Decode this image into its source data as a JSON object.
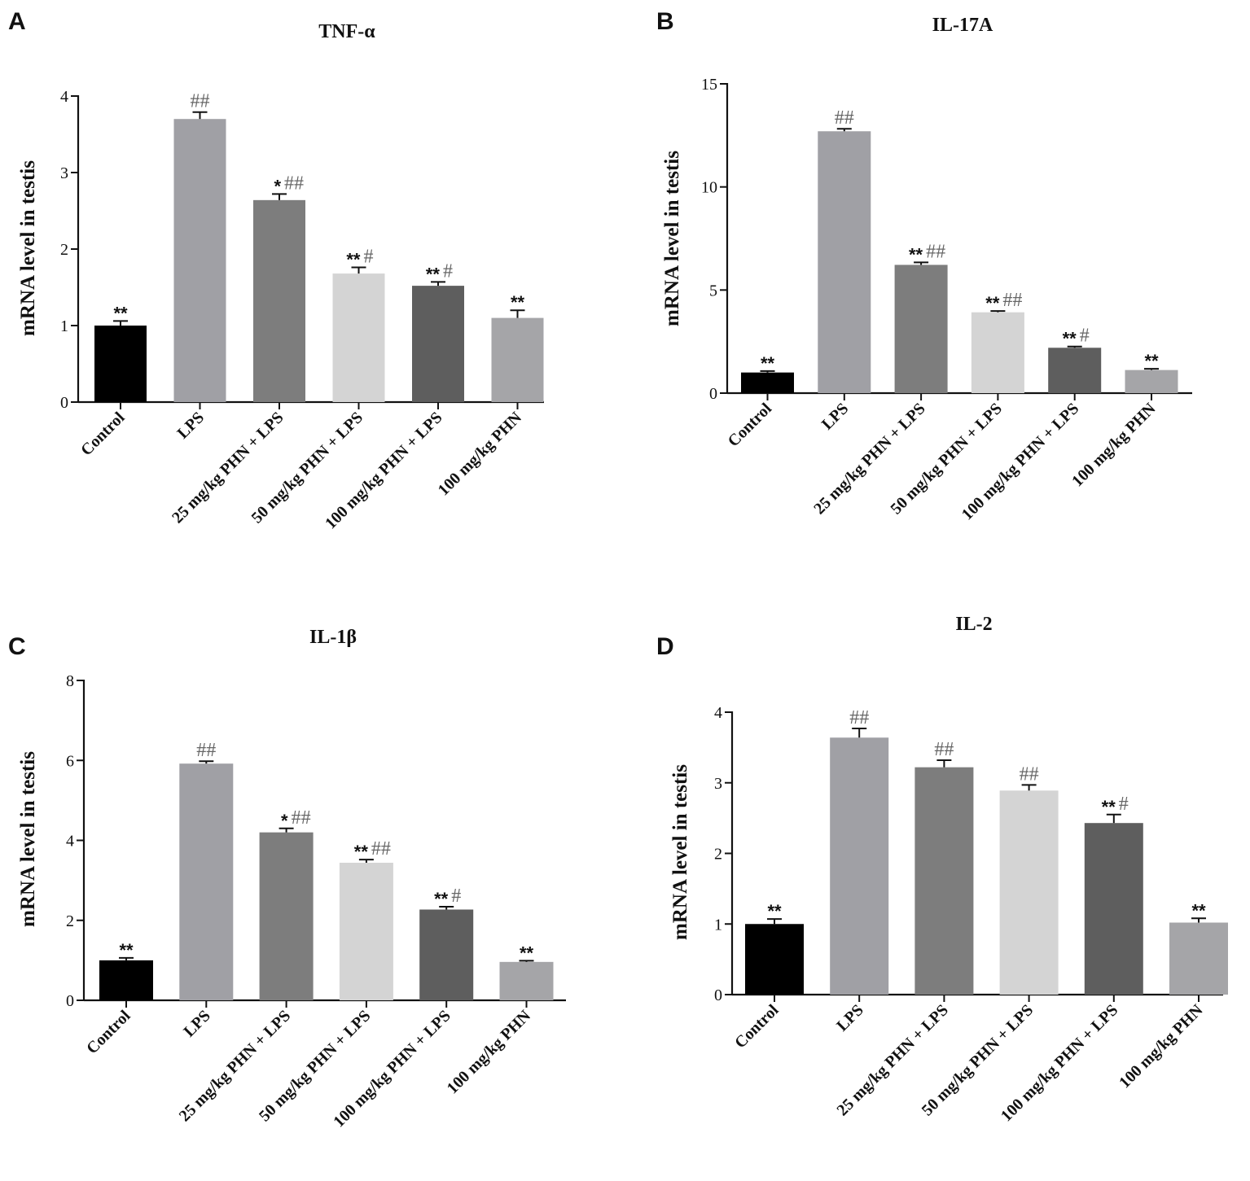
{
  "figure_colors": {
    "bars": [
      "#000000",
      "#a0a0a5",
      "#7d7d7d",
      "#d4d4d4",
      "#5e5e5e",
      "#a5a5a8"
    ],
    "hash_color": "#666666",
    "star_color": "#111111"
  },
  "chart_data": [
    {
      "panel": "A",
      "type": "bar",
      "title": "TNF-α",
      "ylabel": "mRNA level in testis",
      "xlabel": "",
      "ylim": [
        0,
        4
      ],
      "yticks": [
        0,
        1,
        2,
        3,
        4
      ],
      "categories": [
        "Control",
        "LPS",
        "25 mg/kg PHN + LPS",
        "50 mg/kg PHN + LPS",
        "100 mg/kg PHN + LPS",
        "100 mg/kg PHN"
      ],
      "values": [
        1.0,
        3.7,
        2.64,
        1.68,
        1.52,
        1.1
      ],
      "errors": [
        0.06,
        0.09,
        0.08,
        0.08,
        0.05,
        0.1
      ],
      "stars": [
        "**",
        "",
        "*",
        "**",
        "**",
        "**"
      ],
      "hashes": [
        "",
        "##",
        "##",
        "#",
        "#",
        ""
      ]
    },
    {
      "panel": "B",
      "type": "bar",
      "title": "IL-17A",
      "ylabel": "mRNA level in testis",
      "xlabel": "",
      "ylim": [
        0,
        15
      ],
      "yticks": [
        0,
        5,
        10,
        15
      ],
      "categories": [
        "Control",
        "LPS",
        "25 mg/kg PHN + LPS",
        "50 mg/kg PHN + LPS",
        "100 mg/kg PHN + LPS",
        "100 mg/kg PHN"
      ],
      "values": [
        1.0,
        12.7,
        6.22,
        3.92,
        2.2,
        1.12
      ],
      "errors": [
        0.07,
        0.12,
        0.12,
        0.06,
        0.06,
        0.06
      ],
      "stars": [
        "**",
        "",
        "**",
        "**",
        "**",
        "**"
      ],
      "hashes": [
        "",
        "##",
        "##",
        "##",
        "#",
        ""
      ]
    },
    {
      "panel": "C",
      "type": "bar",
      "title": "IL-1β",
      "ylabel": "mRNA level in testis",
      "xlabel": "",
      "ylim": [
        0,
        8
      ],
      "yticks": [
        0,
        2,
        4,
        6,
        8
      ],
      "categories": [
        "Control",
        "LPS",
        "25 mg/kg PHN + LPS",
        "50 mg/kg PHN + LPS",
        "100 mg/kg PHN + LPS",
        "100 mg/kg PHN"
      ],
      "values": [
        1.0,
        5.92,
        4.2,
        3.44,
        2.27,
        0.96
      ],
      "errors": [
        0.06,
        0.06,
        0.1,
        0.08,
        0.07,
        0.03
      ],
      "stars": [
        "**",
        "",
        "*",
        "**",
        "**",
        "**"
      ],
      "hashes": [
        "",
        "##",
        "##",
        "##",
        "#",
        ""
      ]
    },
    {
      "panel": "D",
      "type": "bar",
      "title": "IL-2",
      "ylabel": "mRNA level in testis",
      "xlabel": "",
      "ylim": [
        0,
        4
      ],
      "yticks": [
        0,
        1,
        2,
        3,
        4
      ],
      "categories": [
        "Control",
        "LPS",
        "25 mg/kg PHN + LPS",
        "50 mg/kg PHN + LPS",
        "100 mg/kg PHN + LPS",
        "100 mg/kg PHN"
      ],
      "values": [
        1.0,
        3.64,
        3.22,
        2.89,
        2.43,
        1.02
      ],
      "errors": [
        0.07,
        0.13,
        0.1,
        0.08,
        0.12,
        0.06
      ],
      "stars": [
        "**",
        "",
        "",
        "",
        "**",
        "**"
      ],
      "hashes": [
        "",
        "##",
        "##",
        "##",
        "#",
        ""
      ]
    }
  ]
}
